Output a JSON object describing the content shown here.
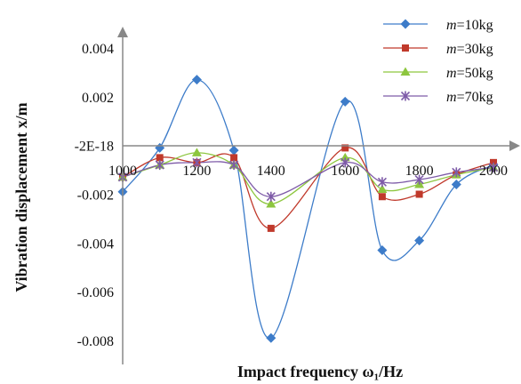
{
  "chart_data": {
    "type": "line",
    "xlabel": "Impact frequency ω₁/Hz",
    "ylabel": "Vibration displacement  x/m",
    "x_ticks": [
      "1000",
      "1200",
      "1400",
      "1600",
      "1800",
      "2000"
    ],
    "y_ticks": [
      "0.004",
      "0.002",
      "-2E-18",
      "-0.002",
      "-0.004",
      "-0.006",
      "-0.008"
    ],
    "xlim": [
      1000,
      2000
    ],
    "ylim": [
      -0.008,
      0.004
    ],
    "legend_position": "top-right",
    "grid": false,
    "x": [
      1000,
      1100,
      1200,
      1300,
      1400,
      1600,
      1700,
      1800,
      1900,
      2000
    ],
    "series": [
      {
        "name": "m=10kg",
        "color": "#3D7CC9",
        "marker": "diamond",
        "values": [
          -0.0019,
          -0.0001,
          0.0027,
          -0.0002,
          -0.0079,
          0.0018,
          -0.0043,
          -0.0039,
          -0.0016,
          -0.0008
        ]
      },
      {
        "name": "m=30kg",
        "color": "#C0392B",
        "marker": "square",
        "values": [
          -0.0013,
          -0.0005,
          -0.0007,
          -0.0005,
          -0.0034,
          -0.0001,
          -0.0021,
          -0.002,
          -0.0012,
          -0.0007
        ]
      },
      {
        "name": "m=50kg",
        "color": "#8DC63F",
        "marker": "triangle",
        "values": [
          -0.0013,
          -0.0008,
          -0.0003,
          -0.0008,
          -0.0024,
          -0.0005,
          -0.0018,
          -0.0016,
          -0.0012,
          -0.0009
        ]
      },
      {
        "name": "m=70kg",
        "color": "#7E5BA8",
        "marker": "star",
        "values": [
          -0.0013,
          -0.0008,
          -0.0007,
          -0.0008,
          -0.0021,
          -0.0007,
          -0.0015,
          -0.0014,
          -0.0011,
          -0.0009
        ]
      }
    ]
  }
}
